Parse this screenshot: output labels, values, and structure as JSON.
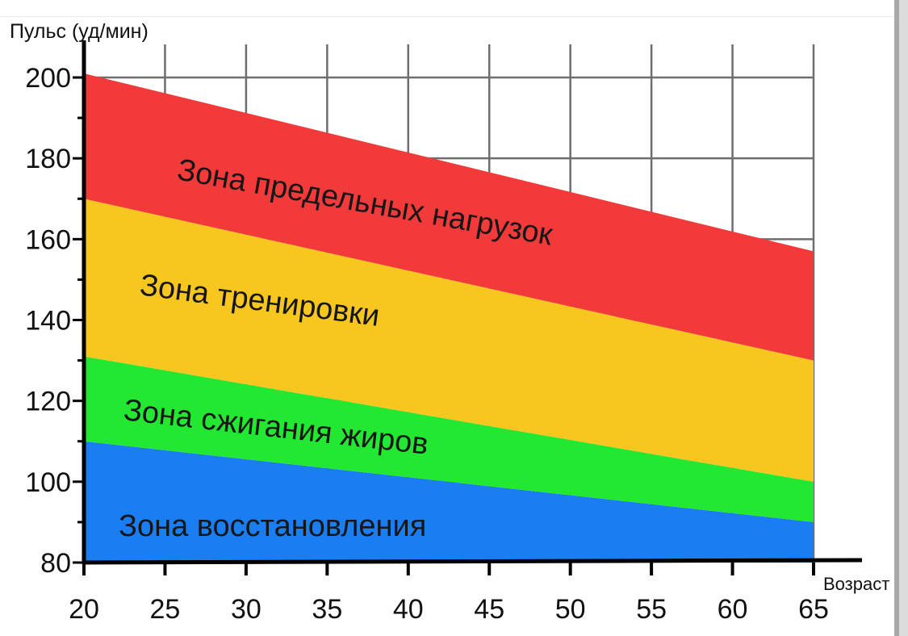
{
  "chart_data": {
    "type": "area",
    "title": "",
    "ylabel": "Пульс (уд/мин)",
    "xlabel": "Возраст",
    "x": [
      20,
      65
    ],
    "xticks": [
      20,
      25,
      30,
      35,
      40,
      45,
      50,
      55,
      60,
      65
    ],
    "ylim": [
      80,
      200
    ],
    "yticks": [
      80,
      100,
      120,
      140,
      160,
      180,
      200
    ],
    "grid": true,
    "bands": [
      {
        "name": "Зона восстановления",
        "color": "#1a7ef2",
        "lower": [
          80,
          80
        ],
        "upper": [
          110,
          90
        ]
      },
      {
        "name": "Зона сжигания жиров",
        "color": "#22e832",
        "lower": [
          110,
          90
        ],
        "upper": [
          131,
          100
        ]
      },
      {
        "name": "Зона тренировки",
        "color": "#f8c71f",
        "lower": [
          131,
          100
        ],
        "upper": [
          170,
          130
        ]
      },
      {
        "name": "Зона предельных нагрузок",
        "color": "#f23a3a",
        "lower": [
          170,
          130
        ],
        "upper": [
          201,
          157
        ]
      }
    ]
  }
}
